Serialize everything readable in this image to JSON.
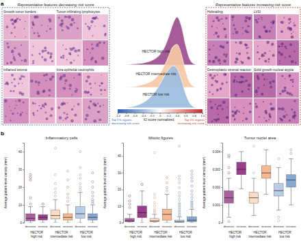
{
  "panel_a": {
    "label": "a",
    "left": {
      "title": "Representative features decreasing risk score",
      "features": [
        "Smooth tumor borders",
        "Tumor infiltrating lymphocytes",
        "Inflamed stroma",
        "Intra-epithelial neutrophils"
      ]
    },
    "right": {
      "title": "Representative features increasing risk score",
      "features": [
        "Hobnailing",
        "LVSI",
        "Desmoplastic stromal reaction",
        "Solid growth-nuclear atypia"
      ]
    }
  },
  "panel_b": {
    "label": "b"
  },
  "chart_data": [
    {
      "type": "ridge",
      "x_label": "IG score normalized",
      "x": [
        -0.8,
        -0.7,
        -0.6,
        -0.5,
        -0.4,
        -0.3,
        -0.2,
        -0.1,
        0,
        0.1,
        0.2,
        0.3,
        0.4,
        0.5,
        0.6,
        0.7,
        0.8,
        0.9
      ],
      "xlim": [
        -1,
        1
      ],
      "xticks": [
        {
          "value": -1,
          "label": "-1.0"
        },
        -0.8,
        -0.6,
        -0.4,
        -0.2,
        0,
        0.2,
        0.4,
        0.6,
        0.8,
        {
          "value": 1,
          "label": "1.0"
        }
      ],
      "ylim": [
        0,
        1
      ],
      "tick_labels": "x",
      "series": [
        {
          "name": "HECTOR high risk",
          "color": "#9c4d8e",
          "values": [
            0,
            0.01,
            0.02,
            0.03,
            0.04,
            0.06,
            0.09,
            0.14,
            0.22,
            0.36,
            0.58,
            0.85,
            1.0,
            0.82,
            0.42,
            0.12,
            0.02,
            0
          ]
        },
        {
          "name": "HECTOR intermediate risk",
          "color": "#f6c8a5",
          "values": [
            0,
            0.01,
            0.02,
            0.04,
            0.06,
            0.09,
            0.13,
            0.2,
            0.3,
            0.45,
            0.65,
            0.85,
            0.9,
            0.7,
            0.35,
            0.1,
            0.02,
            0
          ]
        },
        {
          "name": "HECTOR low risk",
          "color": "#9dbde0",
          "values": [
            0,
            0.02,
            0.04,
            0.07,
            0.11,
            0.17,
            0.25,
            0.36,
            0.5,
            0.66,
            0.8,
            0.88,
            0.82,
            0.6,
            0.3,
            0.1,
            0.02,
            0
          ]
        }
      ],
      "annotations": [
        {
          "lines": [
            "Top 5% regions",
            "decreasing risk score"
          ],
          "color": "#2d5bb5"
        },
        {
          "lines": [
            "Top 5% regions",
            "increasing risk score"
          ],
          "color": "#c62d2d"
        }
      ]
    },
    {
      "type": "box",
      "title": "Inflammatory cells",
      "y_label": "Average patient-level density (mm²)",
      "ylim": [
        0,
        45
      ],
      "yticks": [
        0,
        10,
        20,
        30,
        40
      ],
      "groups": [
        {
          "label": [
            "HECTOR",
            "high risk"
          ],
          "boxes": [
            {
              "name": "decrease",
              "color": "#a8609c",
              "whisker_low": 0,
              "q1": 1,
              "median": 2.5,
              "q3": 5,
              "whisker_high": 9,
              "outliers": [
                10.5,
                14,
                24,
                25.5,
                27
              ]
            },
            {
              "name": "increase",
              "color": "#9a3d8a",
              "whisker_low": 0,
              "q1": 1.5,
              "median": 3,
              "q3": 4.5,
              "whisker_high": 9,
              "outliers": [
                10.5
              ]
            }
          ]
        },
        {
          "label": [
            "HECTOR",
            "intermediate risk"
          ],
          "boxes": [
            {
              "name": "decrease",
              "color": "#fbdcc4",
              "whisker_low": 0,
              "q1": 2,
              "median": 4,
              "q3": 7,
              "whisker_high": 13,
              "outliers": [
                15,
                17,
                19,
                22,
                27,
                42
              ]
            },
            {
              "name": "increase",
              "color": "#f5b88f",
              "whisker_low": 0,
              "q1": 1.5,
              "median": 3,
              "q3": 5,
              "whisker_high": 10,
              "outliers": [
                12,
                14,
                16,
                20,
                24,
                29
              ]
            }
          ]
        },
        {
          "label": [
            "HECTOR",
            "low risk"
          ],
          "boxes": [
            {
              "name": "decrease",
              "color": "#b7cde8",
              "whisker_low": 0,
              "q1": 2.5,
              "median": 5,
              "q3": 9,
              "whisker_high": 17,
              "outliers": [
                18.5,
                20,
                22,
                25,
                27,
                31,
                40
              ]
            },
            {
              "name": "increase",
              "color": "#86a9d4",
              "whisker_low": 0,
              "q1": 1.5,
              "median": 3,
              "q3": 5,
              "whisker_high": 10,
              "outliers": [
                11,
                12,
                13,
                15,
                17,
                20,
                23,
                28
              ]
            }
          ]
        }
      ]
    },
    {
      "type": "box",
      "title": "Mitotic figures",
      "y_label": "Average patient-level density (mm²)",
      "ylim": [
        0,
        48
      ],
      "yticks": [
        0,
        10,
        20,
        30,
        40
      ],
      "groups": [
        {
          "label": [
            "HECTOR",
            "high risk"
          ],
          "boxes": [
            {
              "name": "decrease",
              "color": "#a8609c",
              "whisker_low": 0,
              "q1": 0.5,
              "median": 1,
              "q3": 2.5,
              "whisker_high": 5,
              "outliers": [
                9,
                11,
                13,
                16
              ]
            },
            {
              "name": "increase",
              "color": "#9a3d8a",
              "whisker_low": 0,
              "q1": 3,
              "median": 6,
              "q3": 10,
              "whisker_high": 19,
              "outliers": [
                23
              ]
            }
          ]
        },
        {
          "label": [
            "HECTOR",
            "intermediate risk"
          ],
          "boxes": [
            {
              "name": "decrease",
              "color": "#fbdcc4",
              "whisker_low": 0,
              "q1": 0.5,
              "median": 1,
              "q3": 2.5,
              "whisker_high": 5,
              "outliers": [
                6,
                7,
                8,
                10,
                12,
                15,
                17,
                42
              ]
            },
            {
              "name": "increase",
              "color": "#f5b88f",
              "whisker_low": 0,
              "q1": 1.5,
              "median": 5,
              "q3": 8,
              "whisker_high": 17,
              "outliers": [
                19,
                21,
                24,
                27
              ]
            }
          ]
        },
        {
          "label": [
            "HECTOR",
            "low risk"
          ],
          "boxes": [
            {
              "name": "decrease",
              "color": "#b7cde8",
              "whisker_low": 0,
              "q1": 0.2,
              "median": 0.5,
              "q3": 1.5,
              "whisker_high": 3.5,
              "outliers": [
                4,
                5,
                6,
                7,
                8,
                9,
                10,
                11,
                12,
                14,
                16,
                18,
                21,
                24,
                26,
                28,
                46
              ]
            },
            {
              "name": "increase",
              "color": "#86a9d4",
              "whisker_low": 0,
              "q1": 0.5,
              "median": 1.5,
              "q3": 3.5,
              "whisker_high": 8,
              "outliers": [
                9,
                10,
                11,
                12,
                13,
                15,
                17,
                19,
                22,
                25,
                27,
                29,
                31
              ]
            }
          ]
        }
      ]
    },
    {
      "type": "box",
      "title": "Tumor nuclei area",
      "y_label": "Average patient-level density (mm²)",
      "ylim": [
        0,
        0.0045
      ],
      "yticks": [
        0,
        0.001,
        0.002,
        0.003,
        0.004
      ],
      "groups": [
        {
          "label": [
            "HECTOR",
            "high risk"
          ],
          "boxes": [
            {
              "name": "decrease",
              "color": "#a8609c",
              "whisker_low": 0.0003,
              "q1": 0.0011,
              "median": 0.0014,
              "q3": 0.0018,
              "whisker_high": 0.0025,
              "outliers": [
                5e-05,
                0.0028,
                0.0031,
                0.0037,
                0.0038
              ]
            },
            {
              "name": "increase",
              "color": "#9a3d8a",
              "whisker_low": 0.0019,
              "q1": 0.0027,
              "median": 0.003,
              "q3": 0.0034,
              "whisker_high": 0.004,
              "outliers": []
            }
          ]
        },
        {
          "label": [
            "HECTOR",
            "intermediate risk"
          ],
          "boxes": [
            {
              "name": "decrease",
              "color": "#fbdcc4",
              "whisker_low": 0.0004,
              "q1": 0.0011,
              "median": 0.0014,
              "q3": 0.0017,
              "whisker_high": 0.0025,
              "outliers": [
                0.0028,
                0.0043
              ]
            },
            {
              "name": "increase",
              "color": "#f5b88f",
              "whisker_low": 0.0016,
              "q1": 0.0025,
              "median": 0.0028,
              "q3": 0.0032,
              "whisker_high": 0.0041,
              "outliers": []
            }
          ]
        },
        {
          "label": [
            "HECTOR",
            "low risk"
          ],
          "boxes": [
            {
              "name": "decrease",
              "color": "#b7cde8",
              "whisker_low": 0.0007,
              "q1": 0.0015,
              "median": 0.0018,
              "q3": 0.0022,
              "whisker_high": 0.0031,
              "outliers": [
                0.0001,
                0.0003,
                0.0036
              ]
            },
            {
              "name": "increase",
              "color": "#86a9d4",
              "whisker_low": 0.001,
              "q1": 0.002,
              "median": 0.0024,
              "q3": 0.0027,
              "whisker_high": 0.0036,
              "outliers": [
                0.0039,
                0.0041
              ]
            }
          ]
        }
      ]
    }
  ]
}
